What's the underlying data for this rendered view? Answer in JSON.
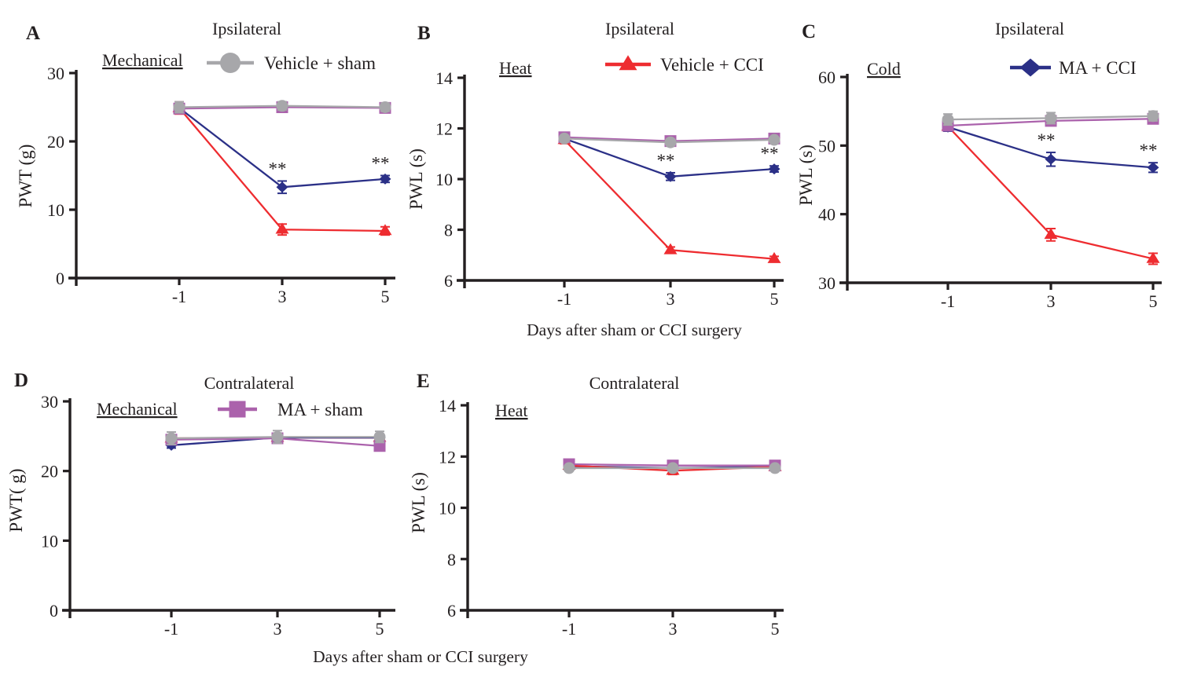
{
  "shared": {
    "x_axis_label": "Days after sham or CCI surgery",
    "significance_symbol": "**"
  },
  "colors": {
    "axis": "#231F20",
    "gray": "#A7A7AA",
    "red": "#EE2C30",
    "navy": "#2B3087",
    "purple": "#AB62AC",
    "background": "#FFFFFF"
  },
  "groups": {
    "vehicle_sham": {
      "label": "Vehicle + sham",
      "color": "#A7A7AA",
      "marker": "circle"
    },
    "vehicle_cci": {
      "label": "Vehicle + CCI",
      "color": "#EE2C30",
      "marker": "triangle"
    },
    "ma_cci": {
      "label": "MA + CCI",
      "color": "#2B3087",
      "marker": "diamond"
    },
    "ma_sham": {
      "label": "MA + sham",
      "color": "#AB62AC",
      "marker": "square"
    }
  },
  "chart_data": [
    {
      "type": "line",
      "panel": "A",
      "panel_letter": "A",
      "title": "Ipsilateral",
      "modality": "Mechanical",
      "ylabel": "PWT (g)",
      "xlabel": null,
      "ylim": [
        0,
        30
      ],
      "yticks": [
        0,
        10,
        20,
        30
      ],
      "x": [
        -1,
        3,
        5
      ],
      "xticklabels": [
        "-1",
        "3",
        "5"
      ],
      "legend_entry": "vehicle_sham",
      "legend_position": "top-right",
      "grid": false,
      "series": [
        {
          "group": "vehicle_cci",
          "values": [
            24.9,
            7.1,
            6.9
          ],
          "errors": [
            0.9,
            0.8,
            0.6
          ],
          "sig": [
            "",
            "",
            ""
          ]
        },
        {
          "group": "ma_cci",
          "values": [
            24.9,
            13.3,
            14.5
          ],
          "errors": [
            0.5,
            0.9,
            0.5
          ],
          "sig": [
            "",
            "**",
            "**"
          ]
        },
        {
          "group": "ma_sham",
          "values": [
            24.8,
            25.0,
            24.9
          ],
          "errors": [
            0.5,
            0.5,
            0.5
          ],
          "sig": [
            "",
            "",
            ""
          ]
        },
        {
          "group": "vehicle_sham",
          "values": [
            25.0,
            25.2,
            25.0
          ],
          "errors": [
            0.8,
            0.6,
            0.6
          ],
          "sig": [
            "",
            "",
            ""
          ]
        }
      ]
    },
    {
      "type": "line",
      "panel": "B",
      "panel_letter": "B",
      "title": "Ipsilateral",
      "modality": "Heat",
      "ylabel": "PWL (s)",
      "xlabel": "Days after sham or CCI surgery",
      "ylim": [
        6,
        14
      ],
      "yticks": [
        6,
        8,
        10,
        12,
        14
      ],
      "x": [
        -1,
        3,
        5
      ],
      "xticklabels": [
        "-1",
        "3",
        "5"
      ],
      "legend_entry": "vehicle_cci",
      "legend_position": "top-right",
      "grid": false,
      "series": [
        {
          "group": "vehicle_cci",
          "values": [
            11.55,
            7.2,
            6.85
          ],
          "errors": [
            0.15,
            0.12,
            0.1
          ],
          "sig": [
            "",
            "",
            ""
          ]
        },
        {
          "group": "ma_cci",
          "values": [
            11.6,
            10.1,
            10.4
          ],
          "errors": [
            0.12,
            0.15,
            0.12
          ],
          "sig": [
            "",
            "**",
            "**"
          ]
        },
        {
          "group": "ma_sham",
          "values": [
            11.65,
            11.5,
            11.6
          ],
          "errors": [
            0.12,
            0.1,
            0.1
          ],
          "sig": [
            "",
            "",
            ""
          ]
        },
        {
          "group": "vehicle_sham",
          "values": [
            11.6,
            11.45,
            11.55
          ],
          "errors": [
            0.12,
            0.12,
            0.1
          ],
          "sig": [
            "",
            "",
            ""
          ]
        }
      ]
    },
    {
      "type": "line",
      "panel": "C",
      "panel_letter": "C",
      "title": "Ipsilateral",
      "modality": "Cold",
      "ylabel": "PWL (s)",
      "xlabel": null,
      "ylim": [
        30,
        60
      ],
      "yticks": [
        30,
        40,
        50,
        60
      ],
      "x": [
        -1,
        3,
        5
      ],
      "xticklabels": [
        "-1",
        "3",
        "5"
      ],
      "legend_entry": "ma_cci",
      "legend_position": "top-right",
      "grid": false,
      "series": [
        {
          "group": "vehicle_cci",
          "values": [
            52.8,
            37.0,
            33.5
          ],
          "errors": [
            0.6,
            0.9,
            0.8
          ],
          "sig": [
            "",
            "",
            ""
          ]
        },
        {
          "group": "ma_cci",
          "values": [
            52.7,
            48.0,
            46.8
          ],
          "errors": [
            0.6,
            1.0,
            0.7
          ],
          "sig": [
            "",
            "**",
            "**"
          ]
        },
        {
          "group": "ma_sham",
          "values": [
            52.9,
            53.6,
            53.9
          ],
          "errors": [
            0.5,
            0.5,
            0.5
          ],
          "sig": [
            "",
            "",
            ""
          ]
        },
        {
          "group": "vehicle_sham",
          "values": [
            53.8,
            54.0,
            54.3
          ],
          "errors": [
            0.8,
            0.8,
            0.7
          ],
          "sig": [
            "",
            "",
            ""
          ]
        }
      ]
    },
    {
      "type": "line",
      "panel": "D",
      "panel_letter": "D",
      "title": "Contralateral",
      "modality": "Mechanical",
      "ylabel": "PWT( g)",
      "xlabel": null,
      "ylim": [
        0,
        30
      ],
      "yticks": [
        0,
        10,
        20,
        30
      ],
      "x": [
        -1,
        3,
        5
      ],
      "xticklabels": [
        "-1",
        "3",
        "5"
      ],
      "legend_entry": "ma_sham",
      "legend_position": "top-right",
      "grid": false,
      "series": [
        {
          "group": "vehicle_cci",
          "values": [
            24.7,
            24.8,
            24.8
          ],
          "errors": [
            0.5,
            0.5,
            0.5
          ],
          "sig": [
            "",
            "",
            ""
          ]
        },
        {
          "group": "ma_cci",
          "values": [
            23.7,
            24.8,
            24.8
          ],
          "errors": [
            0.4,
            0.5,
            0.4
          ],
          "sig": [
            "",
            "",
            ""
          ]
        },
        {
          "group": "ma_sham",
          "values": [
            24.5,
            24.7,
            23.6
          ],
          "errors": [
            0.5,
            0.5,
            0.6
          ],
          "sig": [
            "",
            "",
            ""
          ]
        },
        {
          "group": "vehicle_sham",
          "values": [
            24.7,
            24.9,
            24.9
          ],
          "errors": [
            0.9,
            0.9,
            0.8
          ],
          "sig": [
            "",
            "",
            ""
          ]
        }
      ]
    },
    {
      "type": "line",
      "panel": "E",
      "panel_letter": "E",
      "title": "Contralateral",
      "modality": "Heat",
      "ylabel": "PWL (s)",
      "xlabel": null,
      "ylim": [
        6,
        14
      ],
      "yticks": [
        6,
        8,
        10,
        12,
        14
      ],
      "x": [
        -1,
        3,
        5
      ],
      "xticklabels": [
        "-1",
        "3",
        "5"
      ],
      "legend_entry": null,
      "legend_position": null,
      "grid": false,
      "series": [
        {
          "group": "ma_cci",
          "values": [
            11.62,
            11.55,
            11.6
          ],
          "errors": [
            0.1,
            0.1,
            0.1
          ],
          "sig": [
            "",
            "",
            ""
          ]
        },
        {
          "group": "vehicle_cci",
          "values": [
            11.65,
            11.45,
            11.6
          ],
          "errors": [
            0.1,
            0.15,
            0.1
          ],
          "sig": [
            "",
            "",
            ""
          ]
        },
        {
          "group": "ma_sham",
          "values": [
            11.7,
            11.65,
            11.65
          ],
          "errors": [
            0.08,
            0.08,
            0.08
          ],
          "sig": [
            "",
            "",
            ""
          ]
        },
        {
          "group": "vehicle_sham",
          "values": [
            11.55,
            11.55,
            11.55
          ],
          "errors": [
            0.1,
            0.1,
            0.1
          ],
          "sig": [
            "",
            "",
            ""
          ]
        }
      ]
    }
  ]
}
